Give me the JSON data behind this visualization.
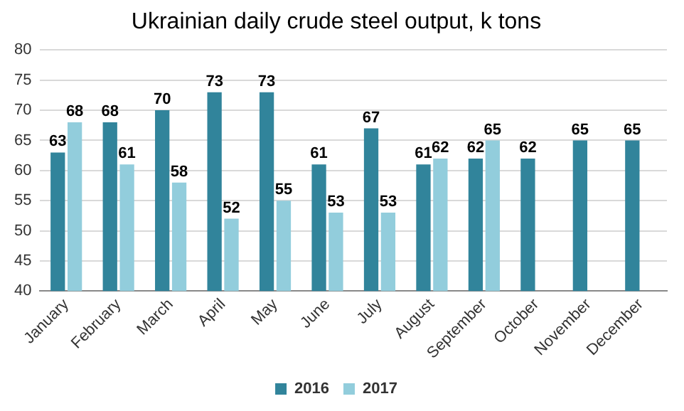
{
  "chart_data": {
    "type": "bar",
    "title": "Ukrainian daily crude steel output, k tons",
    "categories": [
      "January",
      "February",
      "March",
      "April",
      "May",
      "June",
      "July",
      "August",
      "September",
      "October",
      "November",
      "December"
    ],
    "series": [
      {
        "name": "2016",
        "color": "#31849b",
        "values": [
          63,
          68,
          70,
          73,
          73,
          61,
          67,
          61,
          62,
          62,
          65,
          65
        ]
      },
      {
        "name": "2017",
        "color": "#92cddc",
        "values": [
          68,
          61,
          58,
          52,
          55,
          53,
          53,
          62,
          65,
          null,
          null,
          null
        ]
      }
    ],
    "ylim": [
      40,
      80
    ],
    "yticks": [
      40,
      45,
      50,
      55,
      60,
      65,
      70,
      75,
      80
    ],
    "grid": "y",
    "legend": "bottom",
    "data_labels": true
  }
}
